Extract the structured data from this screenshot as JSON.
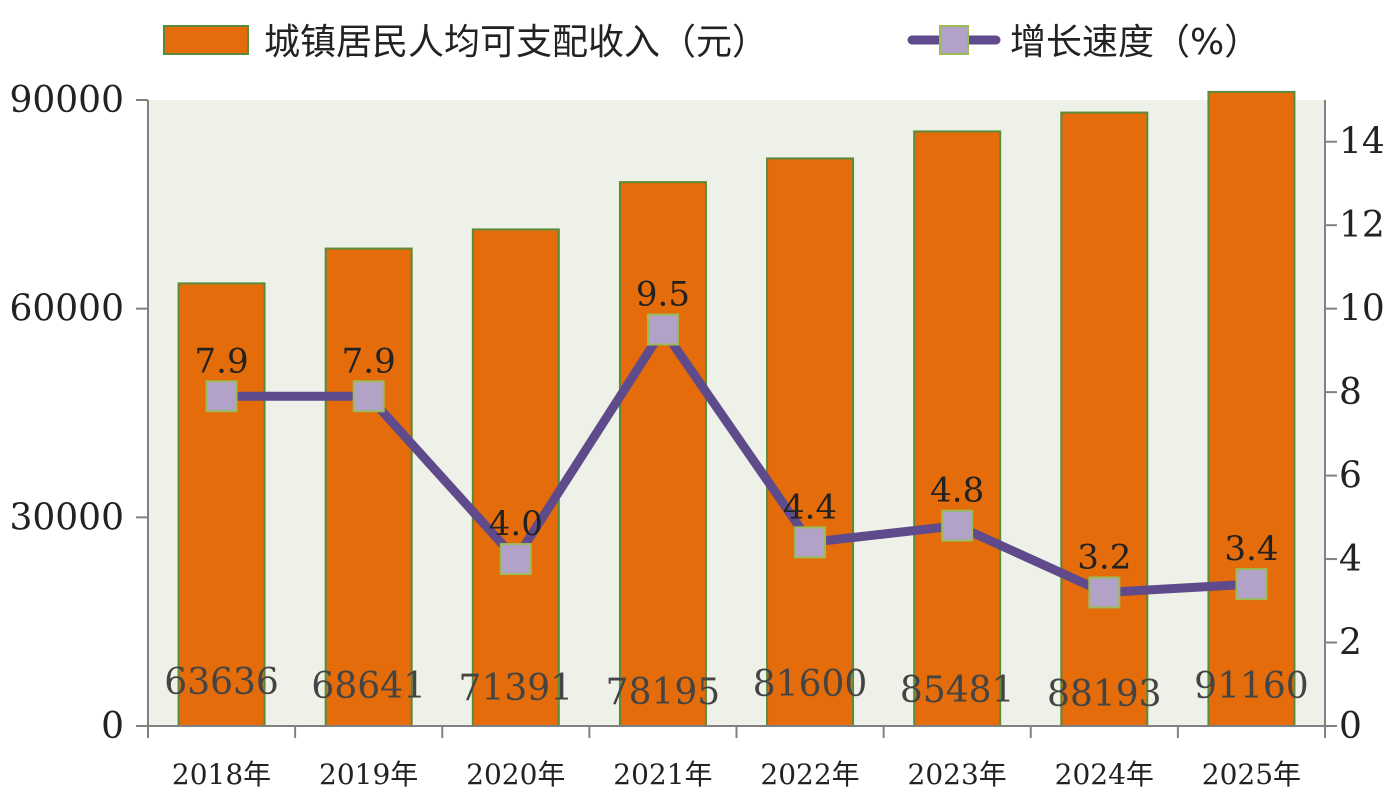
{
  "chart_data": {
    "type": "bar",
    "categories": [
      "2018年",
      "2019年",
      "2020年",
      "2021年",
      "2022年",
      "2023年",
      "2024年",
      "2025年"
    ],
    "series": [
      {
        "name": "城镇居民人均可支配收入（元）",
        "type": "bar",
        "axis": "left",
        "values": [
          63636,
          68641,
          71391,
          78195,
          81600,
          85481,
          88193,
          91160
        ]
      },
      {
        "name": "增长速度（%）",
        "type": "line",
        "axis": "right",
        "values": [
          7.9,
          7.9,
          4.0,
          9.5,
          4.4,
          4.8,
          3.2,
          3.4
        ]
      }
    ],
    "bar_labels": [
      "63636",
      "68641",
      "71391",
      "78195",
      "81600",
      "85481",
      "88193",
      "91160"
    ],
    "line_labels": [
      "7.9",
      "7.9",
      "4.0",
      "9.5",
      "4.4",
      "4.8",
      "3.2",
      "3.4"
    ],
    "y_left": {
      "ticks": [
        0,
        30000,
        60000,
        90000
      ],
      "tick_labels": [
        "0",
        "30000",
        "60000",
        "90000"
      ],
      "lim": [
        0,
        90000
      ]
    },
    "y_right": {
      "ticks": [
        0,
        2,
        4,
        6,
        8,
        10,
        12,
        14
      ],
      "tick_labels": [
        "0",
        "2",
        "4",
        "6",
        "8",
        "10",
        "12",
        "14"
      ],
      "lim": [
        0,
        15
      ]
    },
    "legend_position": "top",
    "grid": false,
    "colors": {
      "bar_fill": "#e46c0a",
      "bar_stroke": "#5a8a3a",
      "line": "#5f4b8b",
      "marker_fill": "#b3a2c7",
      "marker_stroke": "#9bbb59",
      "plot_bg": "#eef1e8",
      "axis": "#808080"
    }
  }
}
